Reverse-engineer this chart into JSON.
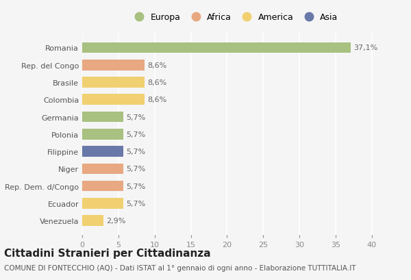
{
  "categories": [
    "Romania",
    "Rep. del Congo",
    "Brasile",
    "Colombia",
    "Germania",
    "Polonia",
    "Filippine",
    "Niger",
    "Rep. Dem. d/Congo",
    "Ecuador",
    "Venezuela"
  ],
  "values": [
    37.1,
    8.6,
    8.6,
    8.6,
    5.7,
    5.7,
    5.7,
    5.7,
    5.7,
    5.7,
    2.9
  ],
  "labels": [
    "37,1%",
    "8,6%",
    "8,6%",
    "8,6%",
    "5,7%",
    "5,7%",
    "5,7%",
    "5,7%",
    "5,7%",
    "5,7%",
    "2,9%"
  ],
  "colors": [
    "#a8c080",
    "#e8a882",
    "#f0d070",
    "#f0d070",
    "#a8c080",
    "#a8c080",
    "#6878a8",
    "#e8a882",
    "#e8a882",
    "#f0d070",
    "#f0d070"
  ],
  "legend_labels": [
    "Europa",
    "Africa",
    "America",
    "Asia"
  ],
  "legend_colors": [
    "#a8c080",
    "#e8a882",
    "#f0d070",
    "#6878a8"
  ],
  "title": "Cittadini Stranieri per Cittadinanza",
  "subtitle": "COMUNE DI FONTECCHIO (AQ) - Dati ISTAT al 1° gennaio di ogni anno - Elaborazione TUTTITALIA.IT",
  "xlim": [
    0,
    42
  ],
  "xticks": [
    0,
    5,
    10,
    15,
    20,
    25,
    30,
    35,
    40
  ],
  "background_color": "#f5f5f5",
  "grid_color": "#ffffff",
  "bar_height": 0.62,
  "title_fontsize": 11,
  "subtitle_fontsize": 7.5,
  "label_fontsize": 8,
  "tick_fontsize": 8,
  "legend_fontsize": 9
}
